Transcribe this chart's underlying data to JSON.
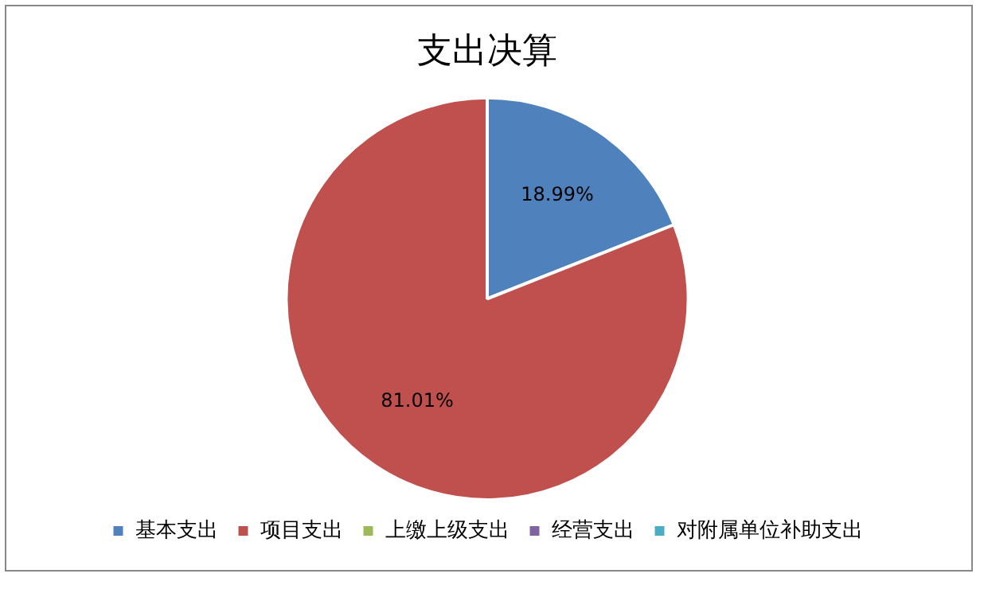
{
  "chart_data": {
    "type": "pie",
    "title": "支出决算",
    "categories": [
      "基本支出",
      "项目支出",
      "上缴上级支出",
      "经营支出",
      "对附属单位补助支出"
    ],
    "values": [
      18.99,
      81.01,
      0,
      0,
      0
    ],
    "colors": [
      "#4f81bd",
      "#c0504d",
      "#9bbb59",
      "#8064a2",
      "#4bacc6"
    ],
    "value_labels": [
      "18.99%",
      "81.01%",
      null,
      null,
      null
    ],
    "legend": "bottom"
  }
}
